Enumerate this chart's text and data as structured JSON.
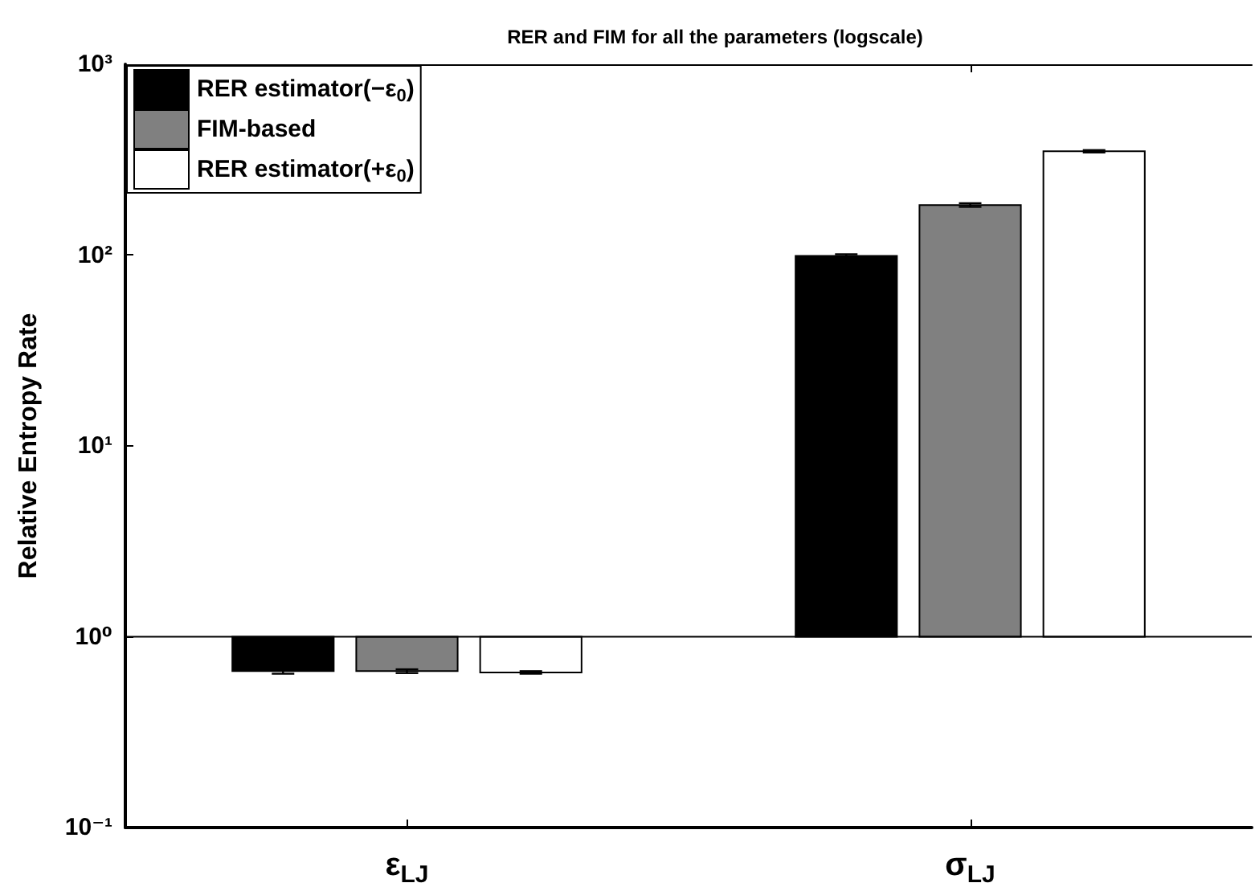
{
  "chart_data": {
    "type": "bar",
    "title": "RER and FIM for all the parameters (logscale)",
    "ylabel": "Relative Entropy Rate",
    "categories": [
      "ε$_{LJ}$",
      "σ$_{LJ}$"
    ],
    "series": [
      {
        "name": "RER estimator(−ε$_{0}$)",
        "color": "#000000",
        "base": [
          1,
          1
        ],
        "values": [
          -0.34,
          98
        ],
        "errors": [
          0.02,
          2
        ]
      },
      {
        "name": "FIM-based",
        "color": "#808080",
        "base": [
          1,
          1
        ],
        "values": [
          -0.34,
          182
        ],
        "errors": [
          0.015,
          4
        ]
      },
      {
        "name": "RER estimator(+ε$_{0}$)",
        "color": "#ffffff",
        "base": [
          1,
          1
        ],
        "values": [
          -0.35,
          349
        ],
        "errors": [
          0.01,
          5
        ]
      }
    ],
    "log": "y",
    "ylim": [
      0.1,
      1000
    ],
    "yticks": [
      {
        "value": 0.1,
        "label": "10⁻¹"
      },
      {
        "value": 1,
        "label": "10⁰"
      },
      {
        "value": 10,
        "label": "10¹"
      },
      {
        "value": 100,
        "label": "10²"
      },
      {
        "value": 1000,
        "label": "10³"
      }
    ],
    "ref_lines": [
      {
        "axis": "y",
        "value": 1,
        "color": "#000000"
      }
    ],
    "legend": "top left",
    "grid": false
  }
}
